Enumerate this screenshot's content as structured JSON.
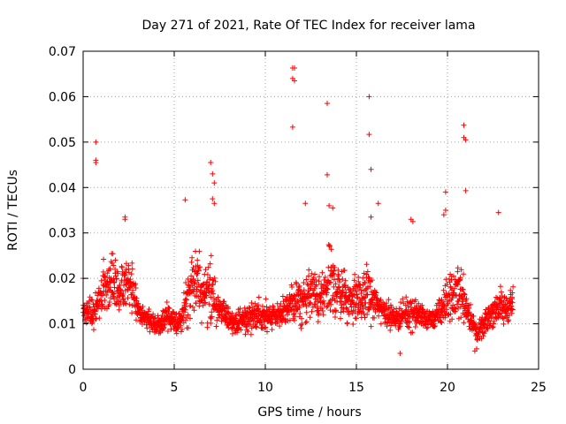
{
  "chart_data": {
    "type": "scatter",
    "title": "Day 271 of 2021, Rate Of TEC Index for receiver lama",
    "xlabel": "GPS time / hours",
    "ylabel": "ROTI / TECUs",
    "xlim": [
      0,
      25
    ],
    "ylim": [
      0,
      0.07
    ],
    "grid": true,
    "marker": "+",
    "color": "#ff0000",
    "x_ticks": [
      0,
      5,
      10,
      15,
      20,
      25
    ],
    "x_tick_labels": [
      "0",
      "5",
      "10",
      "15",
      "20",
      "25"
    ],
    "y_ticks": [
      0,
      0.01,
      0.02,
      0.03,
      0.04,
      0.05,
      0.06,
      0.07
    ],
    "y_tick_labels": [
      "0",
      "0.01",
      "0.02",
      "0.03",
      "0.04",
      "0.05",
      "0.06",
      "0.07"
    ],
    "series": [
      {
        "name": "ROTI",
        "envelope": {
          "hours": [
            0.0,
            0.3,
            0.6,
            0.9,
            1.2,
            1.5,
            1.8,
            2.1,
            2.4,
            2.7,
            3.0,
            3.3,
            3.6,
            3.9,
            4.2,
            4.5,
            4.8,
            5.1,
            5.4,
            5.7,
            6.0,
            6.3,
            6.6,
            6.9,
            7.2,
            7.5,
            7.8,
            8.1,
            8.4,
            8.7,
            9.0,
            9.3,
            9.6,
            9.9,
            10.2,
            10.5,
            10.8,
            11.1,
            11.4,
            11.7,
            12.0,
            12.3,
            12.6,
            12.9,
            13.2,
            13.5,
            13.8,
            14.1,
            14.4,
            14.7,
            15.0,
            15.3,
            15.6,
            15.9,
            16.2,
            16.5,
            16.8,
            17.1,
            17.4,
            17.7,
            18.0,
            18.3,
            18.6,
            18.9,
            19.2,
            19.5,
            19.8,
            20.1,
            20.4,
            20.7,
            21.0,
            21.3,
            21.6,
            21.9,
            22.2,
            22.5,
            22.8,
            23.1,
            23.4,
            23.6
          ],
          "center": [
            0.013,
            0.013,
            0.012,
            0.016,
            0.019,
            0.02,
            0.018,
            0.017,
            0.02,
            0.018,
            0.013,
            0.012,
            0.011,
            0.01,
            0.009,
            0.012,
            0.011,
            0.01,
            0.011,
            0.016,
            0.018,
            0.019,
            0.017,
            0.018,
            0.015,
            0.013,
            0.012,
            0.011,
            0.01,
            0.011,
            0.011,
            0.012,
            0.012,
            0.011,
            0.012,
            0.012,
            0.012,
            0.013,
            0.014,
            0.015,
            0.014,
            0.016,
            0.017,
            0.015,
            0.016,
            0.019,
            0.018,
            0.017,
            0.016,
            0.015,
            0.016,
            0.015,
            0.017,
            0.015,
            0.014,
            0.013,
            0.012,
            0.011,
            0.012,
            0.012,
            0.013,
            0.012,
            0.012,
            0.011,
            0.011,
            0.012,
            0.014,
            0.016,
            0.016,
            0.018,
            0.014,
            0.011,
            0.008,
            0.009,
            0.011,
            0.013,
            0.014,
            0.013,
            0.014,
            0.015
          ],
          "spread": [
            0.004,
            0.004,
            0.005,
            0.006,
            0.008,
            0.009,
            0.008,
            0.007,
            0.008,
            0.007,
            0.004,
            0.003,
            0.003,
            0.003,
            0.003,
            0.004,
            0.004,
            0.003,
            0.004,
            0.008,
            0.01,
            0.009,
            0.008,
            0.012,
            0.007,
            0.004,
            0.004,
            0.003,
            0.003,
            0.004,
            0.005,
            0.005,
            0.005,
            0.005,
            0.005,
            0.004,
            0.004,
            0.005,
            0.006,
            0.007,
            0.006,
            0.008,
            0.008,
            0.007,
            0.008,
            0.011,
            0.01,
            0.008,
            0.008,
            0.007,
            0.008,
            0.006,
            0.009,
            0.006,
            0.005,
            0.004,
            0.004,
            0.003,
            0.004,
            0.004,
            0.006,
            0.004,
            0.004,
            0.003,
            0.003,
            0.004,
            0.006,
            0.008,
            0.007,
            0.009,
            0.006,
            0.004,
            0.003,
            0.003,
            0.004,
            0.005,
            0.006,
            0.005,
            0.005,
            0.005
          ]
        },
        "outliers": [
          [
            0.7,
            0.05
          ],
          [
            0.7,
            0.0455
          ],
          [
            0.7,
            0.046
          ],
          [
            2.3,
            0.033
          ],
          [
            2.3,
            0.0335
          ],
          [
            5.6,
            0.0373
          ],
          [
            7.0,
            0.0455
          ],
          [
            7.1,
            0.043
          ],
          [
            7.2,
            0.041
          ],
          [
            7.1,
            0.0375
          ],
          [
            7.2,
            0.0365
          ],
          [
            11.5,
            0.0663
          ],
          [
            11.6,
            0.0663
          ],
          [
            11.5,
            0.064
          ],
          [
            11.6,
            0.0635
          ],
          [
            11.5,
            0.0533
          ],
          [
            12.2,
            0.0365
          ],
          [
            13.4,
            0.0585
          ],
          [
            13.4,
            0.0428
          ],
          [
            13.5,
            0.036
          ],
          [
            13.7,
            0.0355
          ],
          [
            15.7,
            0.06
          ],
          [
            15.7,
            0.0517
          ],
          [
            15.8,
            0.044
          ],
          [
            15.8,
            0.0335
          ],
          [
            16.2,
            0.0365
          ],
          [
            18.0,
            0.033
          ],
          [
            18.1,
            0.0325
          ],
          [
            19.9,
            0.039
          ],
          [
            19.9,
            0.035
          ],
          [
            19.8,
            0.034
          ],
          [
            20.9,
            0.0537
          ],
          [
            20.9,
            0.051
          ],
          [
            21.0,
            0.0505
          ],
          [
            21.0,
            0.0393
          ],
          [
            22.8,
            0.0345
          ],
          [
            0.0,
            0.02
          ],
          [
            21.5,
            0.004
          ],
          [
            21.6,
            0.0045
          ],
          [
            17.4,
            0.0035
          ]
        ]
      }
    ]
  }
}
